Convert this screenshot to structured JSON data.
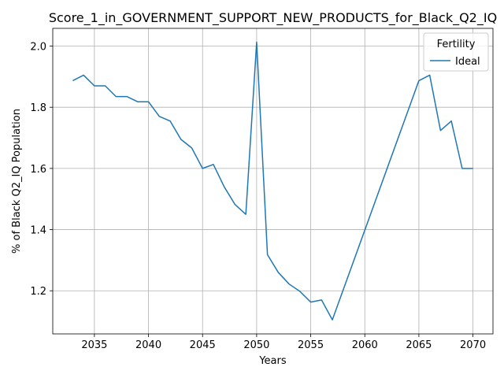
{
  "chart_data": {
    "type": "line",
    "title": "Score_1_in_GOVERNMENT_SUPPORT_NEW_PRODUCTS_for_Black_Q2_IQ",
    "xlabel": "Years",
    "ylabel": "% of Black Q2_IQ Population",
    "xlim": [
      2031.15,
      2071.85
    ],
    "ylim": [
      1.059,
      2.058
    ],
    "xticks": [
      2035,
      2040,
      2045,
      2050,
      2055,
      2060,
      2065,
      2070
    ],
    "yticks": [
      1.2,
      1.4,
      1.6,
      1.8,
      2.0
    ],
    "ytick_labels": [
      "1.2",
      "1.4",
      "1.6",
      "1.8",
      "2.0"
    ],
    "grid": true,
    "legend": {
      "title": "Fertility",
      "placement": "upper right"
    },
    "series": [
      {
        "name": "Ideal",
        "color": "#1f77b4",
        "x": [
          2033,
          2034,
          2035,
          2036,
          2037,
          2038,
          2039,
          2040,
          2041,
          2042,
          2043,
          2044,
          2045,
          2046,
          2047,
          2048,
          2049,
          2050,
          2051,
          2052,
          2053,
          2054,
          2055,
          2056,
          2057,
          2065,
          2066,
          2067,
          2068,
          2069,
          2070
        ],
        "y": [
          1.887,
          1.905,
          1.87,
          1.87,
          1.835,
          1.835,
          1.818,
          1.818,
          1.77,
          1.755,
          1.695,
          1.667,
          1.6,
          1.613,
          1.54,
          1.482,
          1.45,
          2.013,
          1.318,
          1.26,
          1.222,
          1.198,
          1.163,
          1.17,
          1.105,
          1.887,
          1.905,
          1.724,
          1.755,
          1.6,
          1.6
        ]
      }
    ]
  }
}
